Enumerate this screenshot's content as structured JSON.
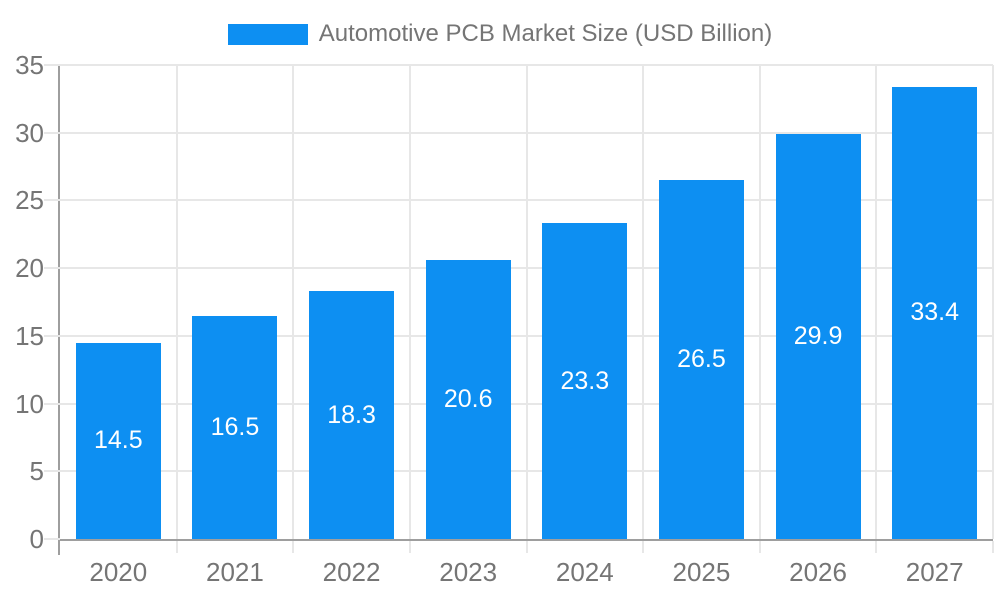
{
  "chart_data": {
    "type": "bar",
    "title": "Automotive PCB Market Size (USD Billion)",
    "categories": [
      "2020",
      "2021",
      "2022",
      "2023",
      "2024",
      "2025",
      "2026",
      "2027"
    ],
    "values": [
      14.5,
      16.5,
      18.3,
      20.6,
      23.3,
      26.5,
      29.9,
      33.4
    ],
    "bar_value_labels": [
      "14.5",
      "16.5",
      "18.3",
      "20.6",
      "23.3",
      "26.5",
      "29.9",
      "33.4"
    ],
    "xlabel": "",
    "ylabel": "",
    "ylim": [
      0,
      35
    ],
    "yticks": [
      0,
      5,
      10,
      15,
      20,
      25,
      30,
      35
    ],
    "grid": true,
    "legend_position": "top",
    "colors": {
      "bar": "#0D8FF2",
      "bar_label_text": "#FFFFFF",
      "axis_text": "#757575",
      "legend_text": "#757575",
      "gridline": "#E7E7E7",
      "axis_line": "#9E9E9E",
      "background": "#FFFFFF"
    }
  }
}
